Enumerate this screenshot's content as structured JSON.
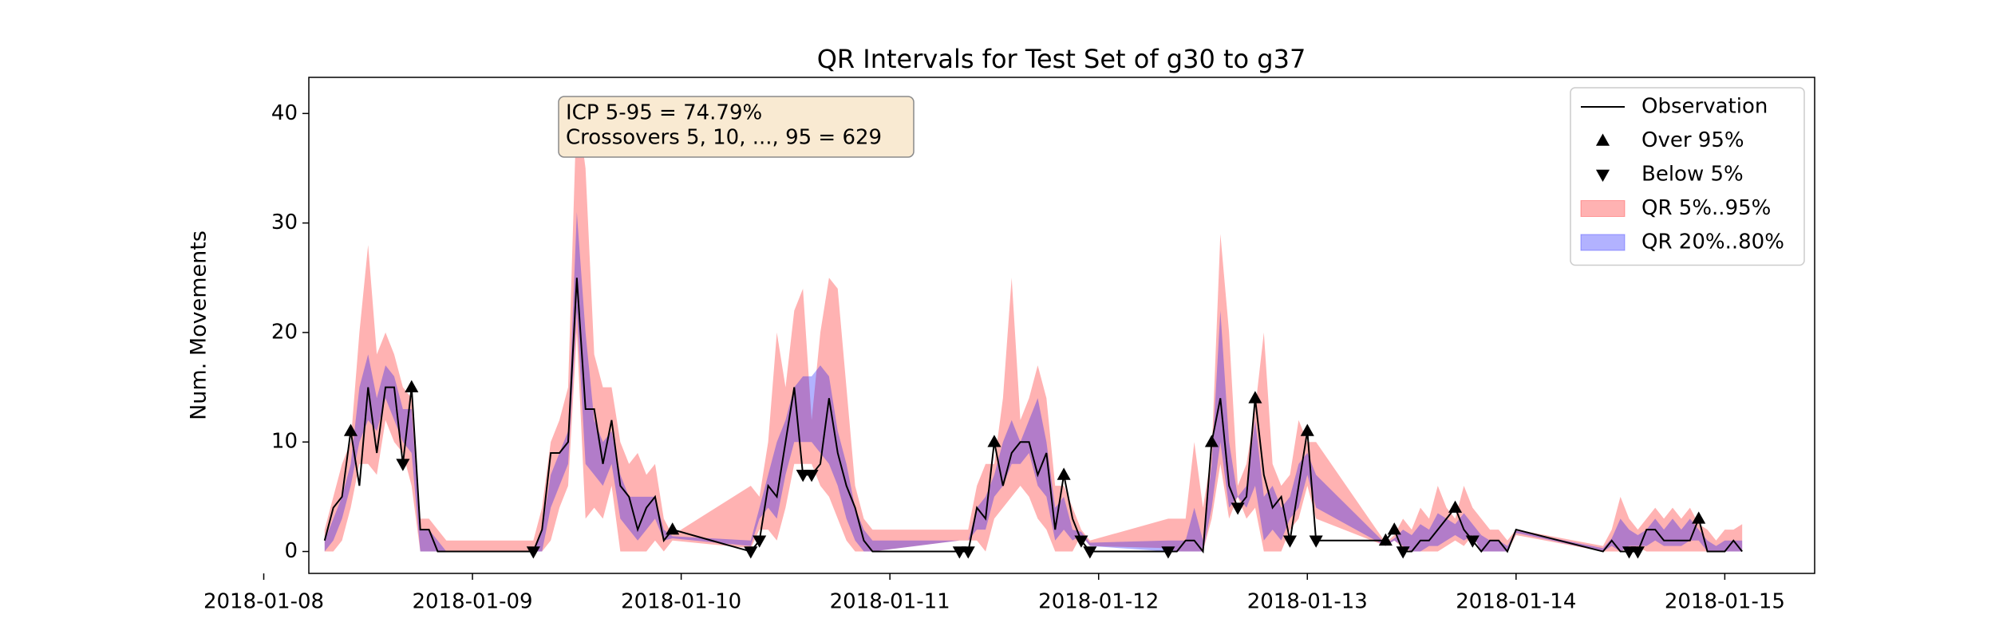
{
  "chart_data": {
    "type": "line",
    "title": "QR Intervals for Test Set of g30 to g37",
    "ylabel": "Num. Movements",
    "annotation": [
      "ICP 5-95 = 74.79%",
      "Crossovers 5, 10, ..., 95 = 629"
    ],
    "legend": "upper right",
    "grid": false,
    "xlim": [
      "2018-01-08 05:11",
      "2018-01-15 10:20"
    ],
    "xticks": [
      "2018-01-08",
      "2018-01-09",
      "2018-01-10",
      "2018-01-11",
      "2018-01-12",
      "2018-01-13",
      "2018-01-14",
      "2018-01-15"
    ],
    "ylim": [
      -2,
      43.3
    ],
    "yticks": [
      0,
      10,
      20,
      30,
      40
    ],
    "x": [
      "2018-01-08 07:00",
      "2018-01-08 08:00",
      "2018-01-08 09:00",
      "2018-01-08 10:00",
      "2018-01-08 11:00",
      "2018-01-08 12:00",
      "2018-01-08 13:00",
      "2018-01-08 14:00",
      "2018-01-08 15:00",
      "2018-01-08 16:00",
      "2018-01-08 17:00",
      "2018-01-08 18:00",
      "2018-01-08 19:00",
      "2018-01-08 20:00",
      "2018-01-08 21:00",
      "2018-01-08 22:00",
      "2018-01-09 07:00",
      "2018-01-09 08:00",
      "2018-01-09 09:00",
      "2018-01-09 10:00",
      "2018-01-09 11:00",
      "2018-01-09 12:00",
      "2018-01-09 13:00",
      "2018-01-09 14:00",
      "2018-01-09 15:00",
      "2018-01-09 16:00",
      "2018-01-09 17:00",
      "2018-01-09 18:00",
      "2018-01-09 19:00",
      "2018-01-09 20:00",
      "2018-01-09 21:00",
      "2018-01-09 22:00",
      "2018-01-09 23:00",
      "2018-01-10 08:00",
      "2018-01-10 09:00",
      "2018-01-10 10:00",
      "2018-01-10 11:00",
      "2018-01-10 12:00",
      "2018-01-10 13:00",
      "2018-01-10 14:00",
      "2018-01-10 15:00",
      "2018-01-10 16:00",
      "2018-01-10 17:00",
      "2018-01-10 18:00",
      "2018-01-10 19:00",
      "2018-01-10 20:00",
      "2018-01-10 21:00",
      "2018-01-10 22:00",
      "2018-01-11 08:00",
      "2018-01-11 09:00",
      "2018-01-11 10:00",
      "2018-01-11 11:00",
      "2018-01-11 12:00",
      "2018-01-11 13:00",
      "2018-01-11 14:00",
      "2018-01-11 15:00",
      "2018-01-11 16:00",
      "2018-01-11 17:00",
      "2018-01-11 18:00",
      "2018-01-11 19:00",
      "2018-01-11 20:00",
      "2018-01-11 21:00",
      "2018-01-11 22:00",
      "2018-01-11 23:00",
      "2018-01-12 08:00",
      "2018-01-12 09:00",
      "2018-01-12 10:00",
      "2018-01-12 11:00",
      "2018-01-12 12:00",
      "2018-01-12 13:00",
      "2018-01-12 14:00",
      "2018-01-12 15:00",
      "2018-01-12 16:00",
      "2018-01-12 17:00",
      "2018-01-12 18:00",
      "2018-01-12 19:00",
      "2018-01-12 20:00",
      "2018-01-12 21:00",
      "2018-01-12 22:00",
      "2018-01-12 23:00",
      "2018-01-13 00:00",
      "2018-01-13 01:00",
      "2018-01-13 09:00",
      "2018-01-13 10:00",
      "2018-01-13 11:00",
      "2018-01-13 12:00",
      "2018-01-13 13:00",
      "2018-01-13 14:00",
      "2018-01-13 15:00",
      "2018-01-13 16:00",
      "2018-01-13 17:00",
      "2018-01-13 18:00",
      "2018-01-13 19:00",
      "2018-01-13 20:00",
      "2018-01-13 21:00",
      "2018-01-13 22:00",
      "2018-01-13 23:00",
      "2018-01-14 00:00",
      "2018-01-14 10:00",
      "2018-01-14 11:00",
      "2018-01-14 12:00",
      "2018-01-14 13:00",
      "2018-01-14 14:00",
      "2018-01-14 15:00",
      "2018-01-14 16:00",
      "2018-01-14 17:00",
      "2018-01-14 18:00",
      "2018-01-14 19:00",
      "2018-01-14 20:00",
      "2018-01-14 21:00",
      "2018-01-14 22:00",
      "2018-01-14 23:00",
      "2018-01-15 00:00",
      "2018-01-15 01:00",
      "2018-01-15 02:00"
    ],
    "series": [
      {
        "name": "Observation",
        "color": "#000000",
        "values": [
          1,
          4,
          5,
          11,
          6,
          15,
          9,
          15,
          15,
          8,
          15,
          2,
          2,
          0,
          0,
          0,
          0,
          2,
          9,
          9,
          10,
          25,
          13,
          13,
          8,
          12,
          6,
          5,
          2,
          4,
          5,
          1,
          2,
          0,
          1,
          6,
          5,
          10,
          15,
          7,
          7,
          8,
          14,
          9,
          6,
          4,
          1,
          0,
          0,
          0,
          4,
          3,
          10,
          6,
          9,
          10,
          10,
          7,
          9,
          2,
          7,
          3,
          1,
          0,
          0,
          0,
          1,
          1,
          0,
          10,
          14,
          6,
          4,
          5,
          14,
          7,
          4,
          5,
          1,
          6,
          11,
          1,
          1,
          2,
          0,
          0,
          1,
          1,
          2,
          3,
          4,
          2,
          1,
          0,
          1,
          1,
          0,
          2,
          0,
          1,
          0,
          0,
          0,
          2,
          2,
          1,
          1,
          1,
          1,
          3,
          0,
          0,
          0,
          1,
          0
        ]
      }
    ],
    "markers": [
      {
        "name": "Over 95%",
        "marker": "up",
        "color": "#000000",
        "x": [
          "2018-01-08 10:00",
          "2018-01-08 17:00",
          "2018-01-09 23:00",
          "2018-01-11 12:00",
          "2018-01-11 20:00",
          "2018-01-12 13:00",
          "2018-01-12 18:00",
          "2018-01-13 00:00",
          "2018-01-13 09:00",
          "2018-01-13 10:00",
          "2018-01-13 17:00",
          "2018-01-14 21:00"
        ],
        "values": [
          11,
          15,
          2,
          10,
          7,
          10,
          14,
          11,
          1,
          2,
          4,
          3
        ]
      },
      {
        "name": "Below 5%",
        "marker": "down",
        "color": "#000000",
        "x": [
          "2018-01-08 16:00",
          "2018-01-09 07:00",
          "2018-01-10 08:00",
          "2018-01-10 09:00",
          "2018-01-10 14:00",
          "2018-01-10 15:00",
          "2018-01-11 08:00",
          "2018-01-11 09:00",
          "2018-01-11 22:00",
          "2018-01-11 23:00",
          "2018-01-12 08:00",
          "2018-01-12 16:00",
          "2018-01-12 22:00",
          "2018-01-13 01:00",
          "2018-01-13 11:00",
          "2018-01-13 19:00",
          "2018-01-14 13:00",
          "2018-01-14 14:00"
        ],
        "values": [
          8,
          0,
          0,
          1,
          7,
          7,
          0,
          0,
          1,
          0,
          0,
          4,
          1,
          1,
          0,
          1,
          0,
          0
        ]
      }
    ],
    "bands": [
      {
        "name": "QR 5%..95%",
        "color": "#ff0000",
        "alpha": 0.3,
        "lower": [
          0,
          0,
          1,
          4,
          8,
          8,
          7,
          12,
          10,
          9,
          6,
          0,
          0,
          0,
          0,
          0,
          0,
          0,
          1,
          4,
          6,
          20,
          3,
          4,
          3,
          6,
          0,
          0,
          0,
          0,
          1,
          0,
          1,
          0.3,
          2,
          2,
          1,
          4,
          8,
          8,
          8,
          6,
          5,
          3,
          1,
          0,
          0,
          0,
          1,
          1,
          1,
          0,
          3,
          4,
          5,
          6,
          5,
          3,
          2,
          0,
          0,
          0,
          1.5,
          0.5,
          0.3,
          0,
          0,
          0,
          0,
          3,
          8,
          3,
          5,
          3,
          4,
          0,
          0,
          0,
          2,
          3,
          6,
          3,
          0.5,
          1,
          0.3,
          0,
          0,
          0,
          0,
          0.5,
          1,
          0.5,
          1.5,
          0,
          0,
          0,
          0,
          1.5,
          0,
          0,
          0,
          0.4,
          0.4,
          0,
          0,
          0,
          0,
          0,
          0,
          0,
          0,
          0,
          0,
          0,
          0
        ],
        "upper": [
          2,
          5,
          8,
          10,
          20,
          28,
          18,
          20,
          18,
          15,
          14,
          3,
          3,
          2,
          1,
          1,
          1,
          4,
          10,
          12,
          15,
          41,
          35,
          18,
          15,
          15,
          10,
          8,
          9,
          7,
          8,
          3,
          1.5,
          6,
          5,
          10,
          20,
          15,
          22,
          24,
          12,
          20,
          25,
          24,
          15,
          6,
          3,
          2,
          2,
          2,
          6,
          8,
          8,
          14,
          25,
          12,
          14,
          17,
          14,
          6,
          6,
          4,
          2,
          1,
          3,
          3,
          3,
          10,
          4,
          9,
          29,
          20,
          6,
          8,
          13,
          20,
          8,
          6,
          7,
          12,
          10,
          10,
          0.8,
          1.5,
          3,
          2,
          4,
          3,
          6,
          4,
          3,
          6,
          4,
          3,
          2,
          2,
          1,
          2,
          0.5,
          2,
          5,
          3,
          2,
          3,
          4,
          3,
          4,
          3,
          4,
          2.5,
          2,
          1,
          2,
          2,
          2.5
        ]
      },
      {
        "name": "QR 20%..80%",
        "color": "#0000ff",
        "alpha": 0.3,
        "lower": [
          0,
          1,
          3,
          6,
          10,
          12,
          11,
          14,
          12,
          10,
          9,
          0,
          0,
          0,
          0,
          0,
          0,
          0,
          4,
          6,
          8,
          22,
          8,
          7,
          6,
          8,
          3,
          2,
          1,
          2,
          3,
          1,
          1.2,
          0.5,
          3,
          4,
          3,
          7,
          10,
          10,
          10,
          9,
          8,
          6,
          3,
          1,
          0,
          0,
          1,
          1,
          2,
          2,
          5,
          6,
          8,
          8,
          9,
          6,
          5,
          1,
          2,
          1,
          1.5,
          0.5,
          0,
          0,
          0,
          0,
          0,
          4,
          10,
          4,
          5,
          4,
          6,
          1,
          2,
          1,
          3,
          4,
          7,
          4,
          0.5,
          1,
          0.5,
          0,
          0,
          0.5,
          0.5,
          1,
          1.5,
          1,
          1.5,
          0,
          0,
          0,
          0,
          1.7,
          0,
          0.5,
          0,
          0.5,
          0.5,
          0.5,
          1,
          0.5,
          0.5,
          0.5,
          1,
          1,
          0,
          0,
          0,
          0,
          0
        ],
        "upper": [
          1,
          3,
          5,
          8,
          15,
          18,
          14,
          17,
          16,
          13,
          13,
          2,
          2,
          1,
          0,
          0,
          0,
          2,
          7,
          9,
          11,
          31,
          20,
          12,
          10,
          11,
          7,
          5,
          5,
          5,
          5,
          2,
          1.4,
          1,
          4,
          7,
          10,
          12,
          15,
          16,
          16,
          17,
          16,
          11,
          8,
          4,
          2,
          1,
          1,
          1,
          4,
          5,
          7,
          10,
          12,
          10,
          12,
          14,
          10,
          4,
          5,
          2,
          1.8,
          0.8,
          1,
          1,
          1,
          4,
          1,
          8,
          22,
          10,
          5,
          6,
          12,
          5,
          6,
          4,
          5,
          8,
          9,
          7,
          0.7,
          1.2,
          2,
          1.5,
          2.5,
          2,
          3.5,
          3,
          2.5,
          3.5,
          2.5,
          1.5,
          1,
          1,
          0.5,
          1.9,
          0.3,
          1.2,
          3,
          2,
          1.5,
          2,
          3,
          2,
          3,
          2,
          3,
          2,
          1,
          0.5,
          1,
          1,
          1
        ]
      }
    ]
  }
}
